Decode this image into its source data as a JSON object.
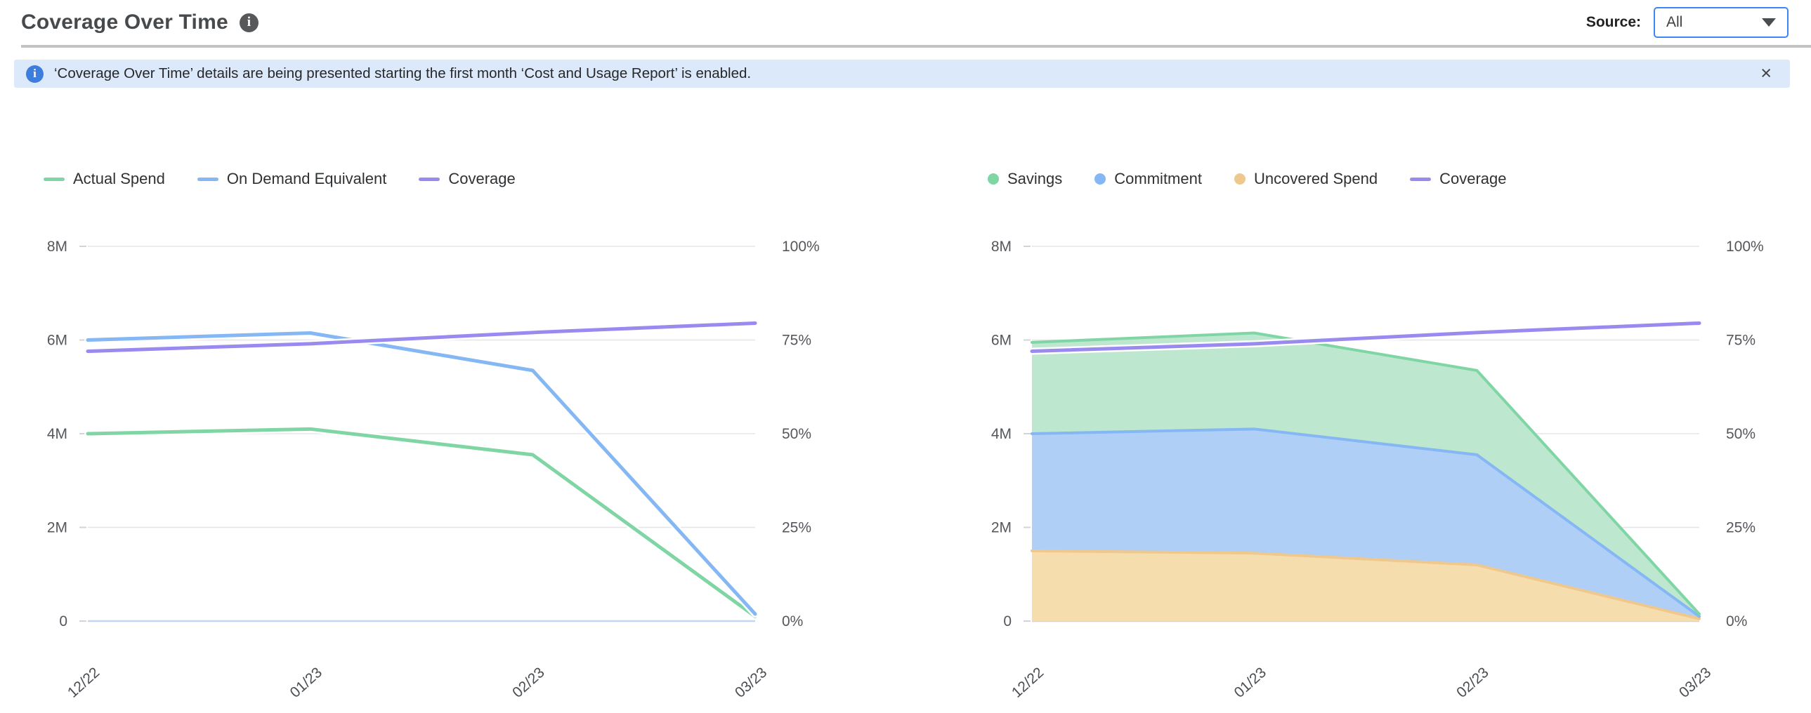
{
  "header": {
    "title": "Coverage Over Time",
    "info_icon": "info-icon",
    "source_label": "Source:",
    "source_value": "All"
  },
  "banner": {
    "text": "‘Coverage Over Time’ details are being presented starting the first month ‘Cost and Usage Report’ is enabled.",
    "close_label": "×"
  },
  "colors": {
    "green_line": "#7fd6a4",
    "green_fill": "#bde7cf",
    "blue_line": "#84b7f4",
    "blue_fill": "#b0cff7",
    "purple_line": "#998af0",
    "tan_line": "#eec88d",
    "tan_fill": "#f6ddae",
    "grid": "#e5e5e8",
    "baseline": "#c8d4f4",
    "tick_text": "#55575c"
  },
  "chart_data": [
    {
      "id": "coverage-line-chart",
      "type": "line",
      "x": [
        "12/22",
        "01/23",
        "02/23",
        "03/23"
      ],
      "left_axis": {
        "ticks": [
          "0",
          "2M",
          "4M",
          "6M",
          "8M"
        ],
        "range_millions": [
          0,
          8
        ]
      },
      "right_axis": {
        "ticks": [
          "0%",
          "25%",
          "50%",
          "75%",
          "100%"
        ],
        "range_percent": [
          0,
          100
        ]
      },
      "grid": true,
      "legend_position": "top",
      "series": [
        {
          "name": "Actual Spend",
          "axis": "left",
          "unit": "M",
          "legend_marker": "line",
          "color": "#7fd6a4",
          "values": [
            4.0,
            4.1,
            3.55,
            0.1
          ]
        },
        {
          "name": "On Demand Equivalent",
          "axis": "left",
          "unit": "M",
          "legend_marker": "line",
          "color": "#84b7f4",
          "values": [
            6.0,
            6.15,
            5.35,
            0.15
          ]
        },
        {
          "name": "Coverage",
          "axis": "right",
          "unit": "%",
          "legend_marker": "line",
          "color": "#998af0",
          "values": [
            72,
            74,
            77,
            79.5
          ]
        }
      ]
    },
    {
      "id": "coverage-stacked-area-chart",
      "type": "area",
      "stacked": true,
      "stack_order_bottom_to_top": [
        "Uncovered Spend",
        "Commitment",
        "Savings"
      ],
      "x": [
        "12/22",
        "01/23",
        "02/23",
        "03/23"
      ],
      "left_axis": {
        "ticks": [
          "0",
          "2M",
          "4M",
          "6M",
          "8M"
        ],
        "range_millions": [
          0,
          8
        ]
      },
      "right_axis": {
        "ticks": [
          "0%",
          "25%",
          "50%",
          "75%",
          "100%"
        ],
        "range_percent": [
          0,
          100
        ]
      },
      "grid": true,
      "legend_position": "top",
      "series": [
        {
          "name": "Savings",
          "kind": "area",
          "axis": "left",
          "unit": "M",
          "legend_marker": "dot",
          "color": "#7fd6a4",
          "fill": "#bde7cf",
          "values": [
            1.95,
            2.05,
            1.8,
            0.05
          ]
        },
        {
          "name": "Commitment",
          "kind": "area",
          "axis": "left",
          "unit": "M",
          "legend_marker": "dot",
          "color": "#84b7f4",
          "fill": "#b0cff7",
          "values": [
            2.5,
            2.65,
            2.35,
            0.05
          ]
        },
        {
          "name": "Uncovered Spend",
          "kind": "area",
          "axis": "left",
          "unit": "M",
          "legend_marker": "dot",
          "color": "#eec88d",
          "fill": "#f6ddae",
          "values": [
            1.5,
            1.45,
            1.2,
            0.05
          ]
        },
        {
          "name": "Coverage",
          "kind": "line",
          "axis": "right",
          "unit": "%",
          "legend_marker": "line",
          "color": "#998af0",
          "values": [
            72,
            74,
            77,
            79.5
          ]
        }
      ]
    }
  ]
}
